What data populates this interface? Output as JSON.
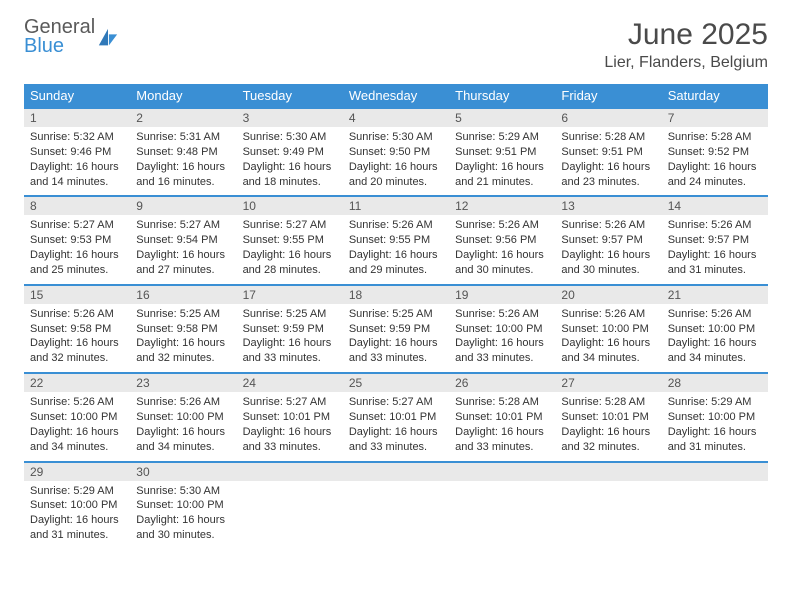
{
  "logo": {
    "general": "General",
    "blue": "Blue"
  },
  "title": "June 2025",
  "location": "Lier, Flanders, Belgium",
  "colors": {
    "header_bg": "#3a8fd4",
    "header_text": "#ffffff",
    "daynum_bg": "#e9e9e9",
    "border": "#3a8fd4"
  },
  "dayNames": [
    "Sunday",
    "Monday",
    "Tuesday",
    "Wednesday",
    "Thursday",
    "Friday",
    "Saturday"
  ],
  "days": [
    {
      "n": 1,
      "sunrise": "5:32 AM",
      "sunset": "9:46 PM",
      "daylight": "16 hours and 14 minutes."
    },
    {
      "n": 2,
      "sunrise": "5:31 AM",
      "sunset": "9:48 PM",
      "daylight": "16 hours and 16 minutes."
    },
    {
      "n": 3,
      "sunrise": "5:30 AM",
      "sunset": "9:49 PM",
      "daylight": "16 hours and 18 minutes."
    },
    {
      "n": 4,
      "sunrise": "5:30 AM",
      "sunset": "9:50 PM",
      "daylight": "16 hours and 20 minutes."
    },
    {
      "n": 5,
      "sunrise": "5:29 AM",
      "sunset": "9:51 PM",
      "daylight": "16 hours and 21 minutes."
    },
    {
      "n": 6,
      "sunrise": "5:28 AM",
      "sunset": "9:51 PM",
      "daylight": "16 hours and 23 minutes."
    },
    {
      "n": 7,
      "sunrise": "5:28 AM",
      "sunset": "9:52 PM",
      "daylight": "16 hours and 24 minutes."
    },
    {
      "n": 8,
      "sunrise": "5:27 AM",
      "sunset": "9:53 PM",
      "daylight": "16 hours and 25 minutes."
    },
    {
      "n": 9,
      "sunrise": "5:27 AM",
      "sunset": "9:54 PM",
      "daylight": "16 hours and 27 minutes."
    },
    {
      "n": 10,
      "sunrise": "5:27 AM",
      "sunset": "9:55 PM",
      "daylight": "16 hours and 28 minutes."
    },
    {
      "n": 11,
      "sunrise": "5:26 AM",
      "sunset": "9:55 PM",
      "daylight": "16 hours and 29 minutes."
    },
    {
      "n": 12,
      "sunrise": "5:26 AM",
      "sunset": "9:56 PM",
      "daylight": "16 hours and 30 minutes."
    },
    {
      "n": 13,
      "sunrise": "5:26 AM",
      "sunset": "9:57 PM",
      "daylight": "16 hours and 30 minutes."
    },
    {
      "n": 14,
      "sunrise": "5:26 AM",
      "sunset": "9:57 PM",
      "daylight": "16 hours and 31 minutes."
    },
    {
      "n": 15,
      "sunrise": "5:26 AM",
      "sunset": "9:58 PM",
      "daylight": "16 hours and 32 minutes."
    },
    {
      "n": 16,
      "sunrise": "5:25 AM",
      "sunset": "9:58 PM",
      "daylight": "16 hours and 32 minutes."
    },
    {
      "n": 17,
      "sunrise": "5:25 AM",
      "sunset": "9:59 PM",
      "daylight": "16 hours and 33 minutes."
    },
    {
      "n": 18,
      "sunrise": "5:25 AM",
      "sunset": "9:59 PM",
      "daylight": "16 hours and 33 minutes."
    },
    {
      "n": 19,
      "sunrise": "5:26 AM",
      "sunset": "10:00 PM",
      "daylight": "16 hours and 33 minutes."
    },
    {
      "n": 20,
      "sunrise": "5:26 AM",
      "sunset": "10:00 PM",
      "daylight": "16 hours and 34 minutes."
    },
    {
      "n": 21,
      "sunrise": "5:26 AM",
      "sunset": "10:00 PM",
      "daylight": "16 hours and 34 minutes."
    },
    {
      "n": 22,
      "sunrise": "5:26 AM",
      "sunset": "10:00 PM",
      "daylight": "16 hours and 34 minutes."
    },
    {
      "n": 23,
      "sunrise": "5:26 AM",
      "sunset": "10:00 PM",
      "daylight": "16 hours and 34 minutes."
    },
    {
      "n": 24,
      "sunrise": "5:27 AM",
      "sunset": "10:01 PM",
      "daylight": "16 hours and 33 minutes."
    },
    {
      "n": 25,
      "sunrise": "5:27 AM",
      "sunset": "10:01 PM",
      "daylight": "16 hours and 33 minutes."
    },
    {
      "n": 26,
      "sunrise": "5:28 AM",
      "sunset": "10:01 PM",
      "daylight": "16 hours and 33 minutes."
    },
    {
      "n": 27,
      "sunrise": "5:28 AM",
      "sunset": "10:01 PM",
      "daylight": "16 hours and 32 minutes."
    },
    {
      "n": 28,
      "sunrise": "5:29 AM",
      "sunset": "10:00 PM",
      "daylight": "16 hours and 31 minutes."
    },
    {
      "n": 29,
      "sunrise": "5:29 AM",
      "sunset": "10:00 PM",
      "daylight": "16 hours and 31 minutes."
    },
    {
      "n": 30,
      "sunrise": "5:30 AM",
      "sunset": "10:00 PM",
      "daylight": "16 hours and 30 minutes."
    }
  ],
  "labels": {
    "sunrise": "Sunrise:",
    "sunset": "Sunset:",
    "daylight": "Daylight:"
  },
  "layout": {
    "startWeekday": 0,
    "rows": 5,
    "cols": 7
  }
}
